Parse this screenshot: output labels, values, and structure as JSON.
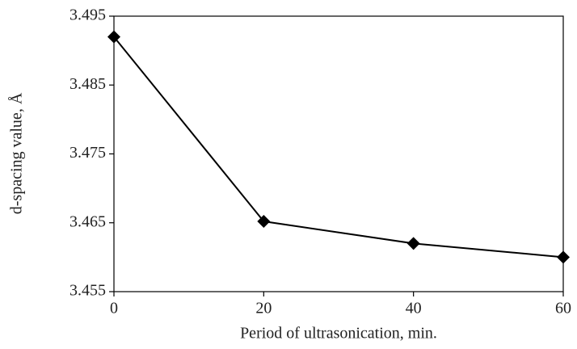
{
  "chart_data": {
    "type": "line",
    "x_label": "Period of ultrasonication, min.",
    "y_label": "d-spacing value, Å",
    "x": [
      0,
      20,
      40,
      60
    ],
    "series": [
      {
        "color": "#000000",
        "values": [
          3.492,
          3.4652,
          3.462,
          3.46
        ]
      }
    ],
    "xlim": [
      0,
      60
    ],
    "xticks": [
      0,
      20,
      40,
      60
    ],
    "ylim": [
      3.455,
      3.495
    ],
    "yticks": [
      3.455,
      3.465,
      3.475,
      3.485,
      3.495
    ],
    "grid": false
  }
}
